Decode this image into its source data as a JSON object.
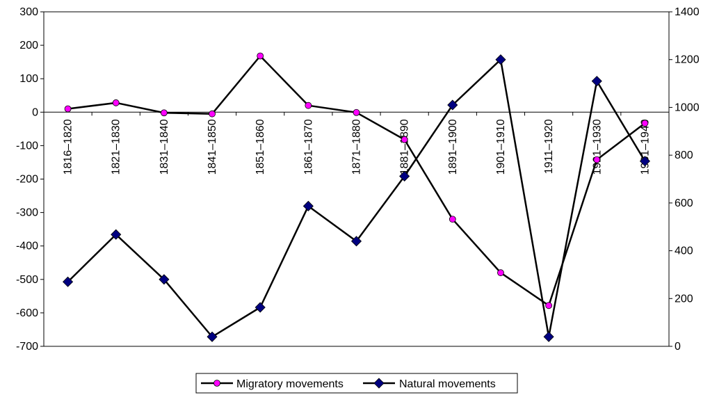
{
  "chart_data": {
    "type": "line",
    "categories": [
      "1816–1820",
      "1821–1830",
      "1831–1840",
      "1841–1850",
      "1851–1860",
      "1861–1870",
      "1871–1880",
      "1881–1890",
      "1891–1900",
      "1901–1910",
      "1911–1920",
      "1921–1930",
      "1931–1940"
    ],
    "series": [
      {
        "name": "Migratory movements",
        "axis": "left",
        "color": "#000000",
        "marker": "circle",
        "marker_color": "#ff00ff",
        "values": [
          10,
          28,
          -2,
          -5,
          168,
          20,
          -1,
          -82,
          -320,
          -480,
          -578,
          -142,
          -33
        ]
      },
      {
        "name": "Natural movements",
        "axis": "right",
        "color": "#000000",
        "marker": "diamond",
        "marker_color": "#000080",
        "values": [
          270,
          468,
          280,
          40,
          163,
          587,
          440,
          712,
          1010,
          1200,
          40,
          1110,
          775
        ]
      }
    ],
    "y_left": {
      "min": -700,
      "max": 300,
      "step": 100,
      "ticks": [
        "300",
        "200",
        "100",
        "0",
        "-100",
        "-200",
        "-300",
        "-400",
        "-500",
        "-600",
        "-700"
      ]
    },
    "y_right": {
      "min": 0,
      "max": 1400,
      "step": 200,
      "ticks": [
        "1400",
        "1200",
        "1000",
        "800",
        "600",
        "400",
        "200",
        "0"
      ]
    },
    "title": "",
    "xlabel": "",
    "ylabel": "",
    "grid": false,
    "legend": "bottom-center"
  }
}
